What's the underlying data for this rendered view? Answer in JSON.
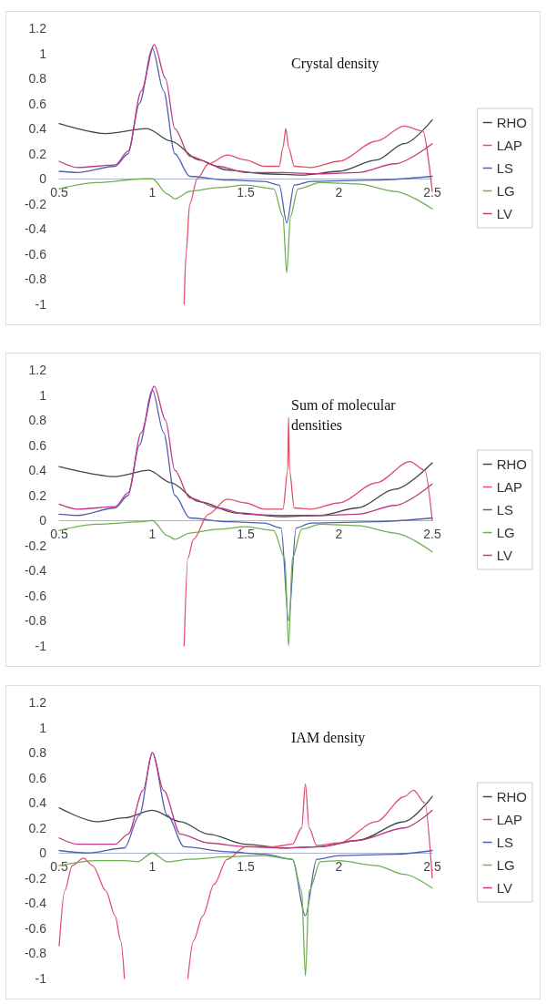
{
  "chart_data": [
    {
      "type": "line",
      "title": "Crystal density",
      "xlim": [
        0.5,
        2.5
      ],
      "xticks": [
        0.5,
        1,
        1.5,
        2,
        2.5
      ],
      "ylim": [
        -1,
        1.2
      ],
      "yticks": [
        -1,
        -0.8,
        -0.6,
        -0.4,
        -0.2,
        0,
        0.2,
        0.4,
        0.6,
        0.8,
        1,
        1.2
      ],
      "legend": "right",
      "marker": "none",
      "line_style": "solid",
      "series": [
        {
          "name": "RHO",
          "color": "#404848",
          "x": [
            0.5,
            0.75,
            0.97,
            1.1,
            1.25,
            1.4,
            1.6,
            1.8,
            2.0,
            2.2,
            2.35,
            2.5
          ],
          "values": [
            0.44,
            0.36,
            0.4,
            0.3,
            0.15,
            0.07,
            0.04,
            0.03,
            0.06,
            0.15,
            0.28,
            0.47
          ]
        },
        {
          "name": "LAP",
          "color": "#e0506a",
          "x": [
            1.17,
            1.18,
            1.2,
            1.24,
            1.3,
            1.4,
            1.5,
            1.6,
            1.68,
            1.7,
            1.715,
            1.73,
            1.76,
            1.85,
            2.0,
            2.2,
            2.35,
            2.45,
            2.5
          ],
          "values": [
            -1,
            -0.6,
            -0.2,
            0,
            0.12,
            0.19,
            0.15,
            0.1,
            0.1,
            0.25,
            0.4,
            0.25,
            0.1,
            0.09,
            0.14,
            0.3,
            0.42,
            0.38,
            -0.1
          ]
        },
        {
          "name": "LS",
          "color": "#5060b0",
          "x": [
            0.5,
            0.6,
            0.8,
            0.87,
            0.93,
            1.0,
            1.06,
            1.12,
            1.2,
            1.4,
            1.6,
            1.68,
            1.72,
            1.76,
            1.85,
            2.2,
            2.5
          ],
          "values": [
            0.06,
            0.05,
            0.1,
            0.2,
            0.6,
            1.04,
            0.7,
            0.2,
            0.02,
            -0.01,
            -0.02,
            -0.05,
            -0.35,
            -0.05,
            -0.02,
            -0.01,
            0.02
          ]
        },
        {
          "name": "LG",
          "color": "#70b050",
          "x": [
            0.5,
            0.7,
            0.95,
            1.0,
            1.08,
            1.12,
            1.2,
            1.35,
            1.5,
            1.65,
            1.7,
            1.72,
            1.74,
            1.78,
            1.9,
            2.1,
            2.3,
            2.5
          ],
          "values": [
            -0.08,
            -0.03,
            0,
            0,
            -0.12,
            -0.16,
            -0.1,
            -0.07,
            -0.05,
            -0.08,
            -0.3,
            -0.75,
            -0.3,
            -0.08,
            -0.03,
            -0.04,
            -0.1,
            -0.24
          ]
        },
        {
          "name": "LV",
          "color": "#c03880",
          "x": [
            0.5,
            0.6,
            0.8,
            0.87,
            0.94,
            1.01,
            1.07,
            1.12,
            1.2,
            1.35,
            1.5,
            1.7,
            1.9,
            2.1,
            2.3,
            2.5
          ],
          "values": [
            0.14,
            0.09,
            0.11,
            0.22,
            0.7,
            1.07,
            0.8,
            0.4,
            0.18,
            0.1,
            0.05,
            0.05,
            0.04,
            0.05,
            0.12,
            0.28
          ]
        }
      ]
    },
    {
      "type": "line",
      "title": "Sum of molecular densities",
      "xlim": [
        0.5,
        2.5
      ],
      "xticks": [
        0.5,
        1,
        1.5,
        2,
        2.5
      ],
      "ylim": [
        -1,
        1.2
      ],
      "yticks": [
        -1,
        -0.8,
        -0.6,
        -0.4,
        -0.2,
        0,
        0.2,
        0.4,
        0.6,
        0.8,
        1,
        1.2
      ],
      "legend": "right",
      "marker": "none",
      "line_style": "solid",
      "series": [
        {
          "name": "RHO",
          "color": "#404848",
          "x": [
            0.5,
            0.8,
            0.98,
            1.1,
            1.25,
            1.45,
            1.7,
            1.9,
            2.1,
            2.3,
            2.5
          ],
          "values": [
            0.43,
            0.35,
            0.4,
            0.3,
            0.15,
            0.06,
            0.03,
            0.04,
            0.1,
            0.25,
            0.46
          ]
        },
        {
          "name": "LAP",
          "color": "#e0506a",
          "x": [
            1.17,
            1.19,
            1.22,
            1.3,
            1.4,
            1.5,
            1.6,
            1.7,
            1.725,
            1.73,
            1.735,
            1.76,
            1.85,
            2.0,
            2.2,
            2.38,
            2.46,
            2.5
          ],
          "values": [
            -1,
            -0.3,
            -0.15,
            0.05,
            0.17,
            0.14,
            0.09,
            0.09,
            0.4,
            0.82,
            0.4,
            0.1,
            0.09,
            0.14,
            0.3,
            0.47,
            0.4,
            0
          ]
        },
        {
          "name": "LS",
          "color": "#5060b0",
          "x": [
            0.5,
            0.6,
            0.8,
            0.87,
            0.93,
            1.0,
            1.06,
            1.12,
            1.2,
            1.4,
            1.6,
            1.69,
            1.73,
            1.77,
            1.85,
            2.2,
            2.5
          ],
          "values": [
            0.05,
            0.04,
            0.1,
            0.2,
            0.6,
            1.04,
            0.7,
            0.2,
            0.02,
            -0.01,
            -0.02,
            -0.06,
            -0.8,
            -0.06,
            -0.02,
            -0.01,
            0.02
          ]
        },
        {
          "name": "LG",
          "color": "#70b050",
          "x": [
            0.5,
            0.7,
            0.95,
            1.0,
            1.08,
            1.12,
            1.2,
            1.35,
            1.5,
            1.65,
            1.71,
            1.73,
            1.75,
            1.8,
            1.9,
            2.1,
            2.3,
            2.5
          ],
          "values": [
            -0.08,
            -0.03,
            -0.01,
            0,
            -0.12,
            -0.15,
            -0.1,
            -0.07,
            -0.05,
            -0.08,
            -0.3,
            -1,
            -0.3,
            -0.07,
            -0.03,
            -0.04,
            -0.1,
            -0.25
          ]
        },
        {
          "name": "LV",
          "color": "#c03880",
          "x": [
            0.5,
            0.6,
            0.8,
            0.87,
            0.94,
            1.01,
            1.07,
            1.12,
            1.2,
            1.35,
            1.5,
            1.7,
            1.9,
            2.1,
            2.3,
            2.5
          ],
          "values": [
            0.13,
            0.09,
            0.11,
            0.22,
            0.7,
            1.07,
            0.8,
            0.4,
            0.18,
            0.1,
            0.05,
            0.04,
            0.04,
            0.05,
            0.12,
            0.29
          ]
        }
      ]
    },
    {
      "type": "line",
      "title": "IAM density",
      "xlim": [
        0.5,
        2.5
      ],
      "xticks": [
        0.5,
        1,
        1.5,
        2,
        2.5
      ],
      "ylim": [
        -1,
        1.2
      ],
      "yticks": [
        -1,
        -0.8,
        -0.6,
        -0.4,
        -0.2,
        0,
        0.2,
        0.4,
        0.6,
        0.8,
        1,
        1.2
      ],
      "legend": "right",
      "marker": "none",
      "line_style": "solid",
      "series": [
        {
          "name": "RHO",
          "color": "#404848",
          "x": [
            0.5,
            0.7,
            0.85,
            1.0,
            1.15,
            1.3,
            1.5,
            1.7,
            1.9,
            2.1,
            2.35,
            2.5
          ],
          "values": [
            0.36,
            0.25,
            0.28,
            0.34,
            0.25,
            0.15,
            0.07,
            0.04,
            0.05,
            0.1,
            0.25,
            0.45
          ]
        },
        {
          "name": "LAP",
          "color": "#e0506a",
          "x": [
            0.5,
            0.53,
            0.57,
            0.63,
            0.68,
            0.75,
            0.8,
            0.83,
            0.85,
            1.0,
            1.19,
            1.22,
            1.27,
            1.33,
            1.4,
            1.5,
            1.65,
            1.75,
            1.8,
            1.82,
            1.84,
            1.88,
            2.0,
            2.2,
            2.35,
            2.4,
            2.46,
            2.5
          ],
          "values": [
            -0.74,
            -0.3,
            -0.1,
            -0.04,
            -0.1,
            -0.3,
            -0.5,
            -0.7,
            -1,
            null,
            -1,
            -0.7,
            -0.5,
            -0.25,
            -0.05,
            0.05,
            0.05,
            0.07,
            0.2,
            0.55,
            0.2,
            0.06,
            0.08,
            0.25,
            0.45,
            0.5,
            0.4,
            -0.2
          ]
        },
        {
          "name": "LS",
          "color": "#5060b0",
          "x": [
            0.5,
            0.65,
            0.85,
            0.93,
            1.0,
            1.08,
            1.17,
            1.4,
            1.6,
            1.75,
            1.82,
            1.88,
            2.0,
            2.3,
            2.5
          ],
          "values": [
            0.02,
            0,
            0.04,
            0.3,
            0.8,
            0.3,
            0.05,
            0.01,
            -0.01,
            -0.05,
            -0.5,
            -0.05,
            -0.02,
            -0.01,
            0.02
          ]
        },
        {
          "name": "LG",
          "color": "#70b050",
          "x": [
            0.5,
            0.7,
            0.85,
            0.92,
            1.0,
            1.08,
            1.2,
            1.4,
            1.6,
            1.75,
            1.8,
            1.82,
            1.84,
            1.9,
            2.0,
            2.2,
            2.35,
            2.5
          ],
          "values": [
            -0.1,
            -0.06,
            -0.06,
            -0.07,
            0,
            -0.07,
            -0.05,
            -0.03,
            -0.02,
            -0.05,
            -0.3,
            -0.98,
            -0.3,
            -0.07,
            -0.06,
            -0.1,
            -0.17,
            -0.28
          ]
        },
        {
          "name": "LV",
          "color": "#c03880",
          "x": [
            0.5,
            0.6,
            0.8,
            0.87,
            0.95,
            1.0,
            1.06,
            1.15,
            1.3,
            1.5,
            1.7,
            1.9,
            2.1,
            2.35,
            2.5
          ],
          "values": [
            0.12,
            0.07,
            0.07,
            0.15,
            0.5,
            0.8,
            0.5,
            0.15,
            0.08,
            0.05,
            0.04,
            0.05,
            0.1,
            0.2,
            0.34
          ]
        }
      ]
    }
  ]
}
